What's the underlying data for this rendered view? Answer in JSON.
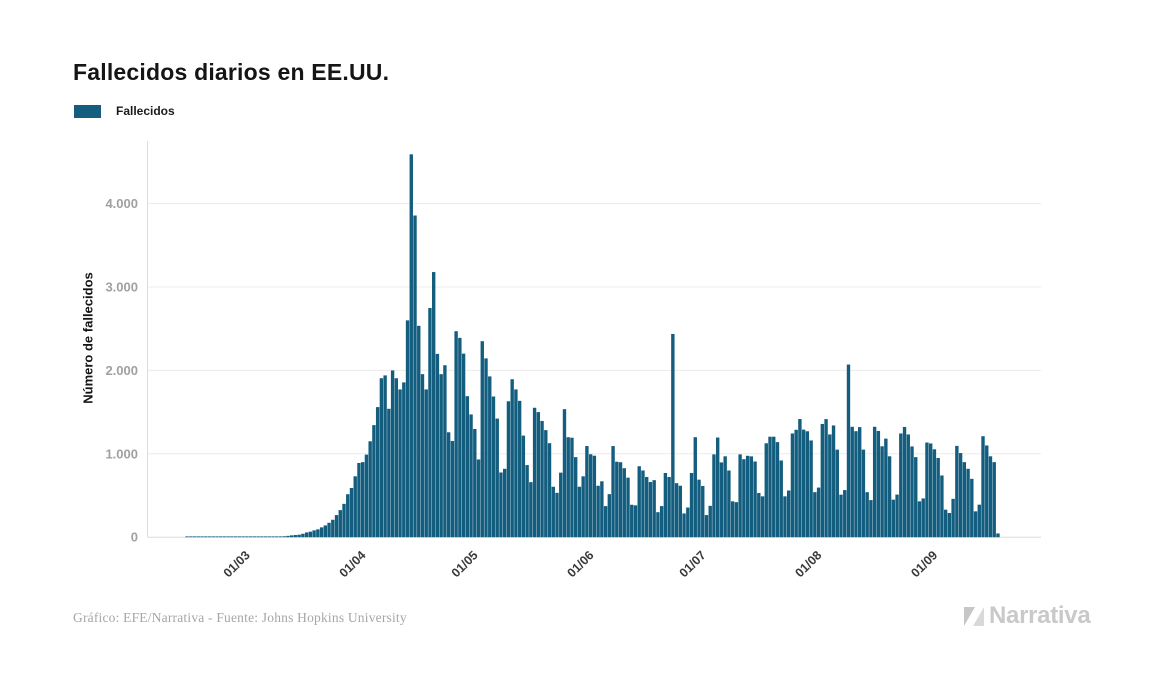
{
  "title": "Fallecidos diarios en EE.UU.",
  "legend": {
    "label": "Fallecidos"
  },
  "footer": {
    "credit": "Gráfico: EFE/Narrativa - Fuente: Johns Hopkins University"
  },
  "brand": {
    "name": "Narrativa"
  },
  "chart_data": {
    "type": "bar",
    "title": "Fallecidos diarios en EE.UU.",
    "series_name": "Fallecidos",
    "ylabel": "Número de fallecidos",
    "xlabel": "",
    "grid": true,
    "legend_position": "top-left",
    "bar_color": "#135D7F",
    "ylim": [
      0,
      4750
    ],
    "y_tick_values": [
      0,
      1000,
      2000,
      3000,
      4000
    ],
    "y_tick_labels": [
      "0",
      "1.000",
      "2.000",
      "3.000",
      "4.000"
    ],
    "x_start_date": "2020-02-06",
    "x_tick_labels": [
      "01/03",
      "01/04",
      "01/05",
      "01/06",
      "01/07",
      "01/08",
      "01/09"
    ],
    "x_tick_day_offsets": [
      24,
      55,
      85,
      116,
      146,
      177,
      208
    ],
    "values": [
      0,
      0,
      0,
      0,
      0,
      0,
      0,
      0,
      0,
      0,
      1,
      1,
      1,
      1,
      1,
      1,
      1,
      1,
      1,
      1,
      1,
      1,
      2,
      2,
      1,
      1,
      4,
      3,
      4,
      2,
      3,
      4,
      5,
      6,
      7,
      9,
      11,
      16,
      22,
      26,
      30,
      41,
      57,
      66,
      82,
      94,
      118,
      141,
      173,
      209,
      265,
      325,
      400,
      515,
      590,
      730,
      890,
      900,
      990,
      1150,
      1344,
      1560,
      1906,
      1940,
      1540,
      2000,
      1906,
      1772,
      1856,
      2600,
      4591,
      3857,
      2535,
      1955,
      1772,
      2748,
      3179,
      2198,
      1955,
      2062,
      1258,
      1154,
      2470,
      2390,
      2201,
      1691,
      1472,
      1297,
      932,
      2350,
      2144,
      1928,
      1687,
      1422,
      776,
      820,
      1630,
      1894,
      1772,
      1635,
      1218,
      865,
      660,
      1552,
      1500,
      1394,
      1284,
      1127,
      605,
      532,
      774,
      1535,
      1199,
      1193,
      960,
      605,
      730,
      1093,
      995,
      977,
      617,
      670,
      373,
      516,
      1093,
      905,
      899,
      827,
      714,
      389,
      382,
      851,
      800,
      722,
      661,
      684,
      300,
      373,
      770,
      722,
      2437,
      648,
      617,
      285,
      356,
      770,
      1199,
      690,
      614,
      265,
      376,
      993,
      1195,
      897,
      970,
      800,
      430,
      420,
      993,
      935,
      976,
      969,
      908,
      530,
      490,
      1126,
      1205,
      1205,
      1140,
      920,
      490,
      560,
      1244,
      1288,
      1417,
      1290,
      1270,
      1160,
      540,
      595,
      1358,
      1416,
      1232,
      1340,
      1050,
      510,
      565,
      2070,
      1324,
      1271,
      1320,
      1050,
      540,
      445,
      1324,
      1274,
      1090,
      1182,
      970,
      450,
      511,
      1244,
      1322,
      1232,
      1088,
      960,
      430,
      465,
      1135,
      1124,
      1054,
      950,
      740,
      330,
      290,
      460,
      1095,
      1009,
      900,
      820,
      700,
      310,
      390,
      1211,
      1100,
      970,
      900,
      45
    ]
  }
}
